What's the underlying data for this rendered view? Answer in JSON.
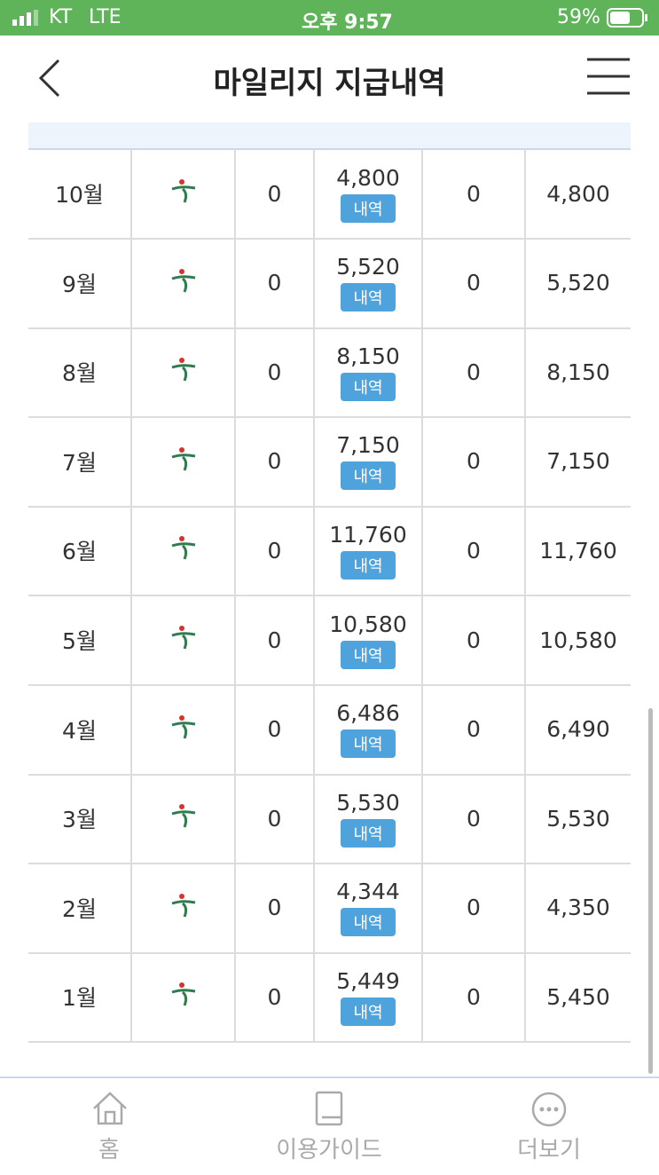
{
  "status_bar": {
    "carrier": "KT",
    "network": "LTE",
    "time": "오후 9:57",
    "battery": "59%"
  },
  "header": {
    "title": "마일리지 지급내역"
  },
  "table": {
    "rows": [
      [
        "10월",
        "0",
        "4,800",
        "내역",
        "0",
        "4,800"
      ],
      [
        "9월",
        "0",
        "5,520",
        "내역",
        "0",
        "5,520"
      ],
      [
        "8월",
        "0",
        "8,150",
        "내역",
        "0",
        "8,150"
      ],
      [
        "7월",
        "0",
        "7,150",
        "내역",
        "0",
        "7,150"
      ],
      [
        "6월",
        "0",
        "11,760",
        "내역",
        "0",
        "11,760"
      ],
      [
        "5월",
        "0",
        "10,580",
        "내역",
        "0",
        "10,580"
      ],
      [
        "4월",
        "0",
        "6,486",
        "내역",
        "0",
        "6,490"
      ],
      [
        "3월",
        "0",
        "5,530",
        "내역",
        "0",
        "5,530"
      ],
      [
        "2월",
        "0",
        "4,344",
        "내역",
        "0",
        "4,350"
      ],
      [
        "1월",
        "0",
        "5,449",
        "내역",
        "0",
        "5,450"
      ]
    ]
  },
  "bottom_nav": {
    "items": [
      "홈",
      "이용가이드",
      "더보기"
    ]
  }
}
